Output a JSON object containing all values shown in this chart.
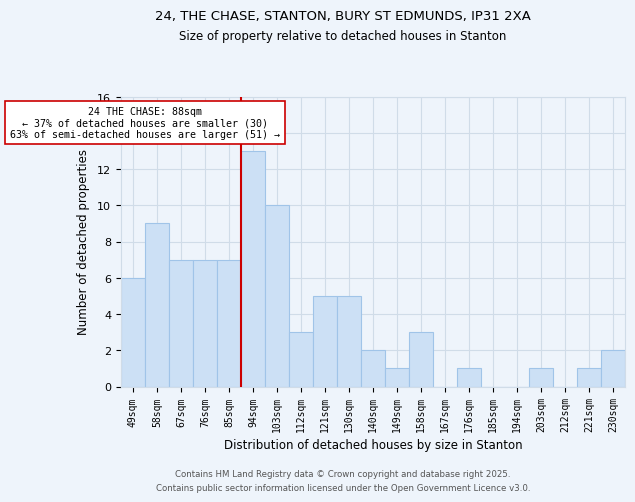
{
  "title1": "24, THE CHASE, STANTON, BURY ST EDMUNDS, IP31 2XA",
  "title2": "Size of property relative to detached houses in Stanton",
  "xlabel": "Distribution of detached houses by size in Stanton",
  "ylabel": "Number of detached properties",
  "bar_labels": [
    "49sqm",
    "58sqm",
    "67sqm",
    "76sqm",
    "85sqm",
    "94sqm",
    "103sqm",
    "112sqm",
    "121sqm",
    "130sqm",
    "140sqm",
    "149sqm",
    "158sqm",
    "167sqm",
    "176sqm",
    "185sqm",
    "194sqm",
    "203sqm",
    "212sqm",
    "221sqm",
    "230sqm"
  ],
  "bar_values": [
    6,
    9,
    7,
    7,
    7,
    13,
    10,
    3,
    5,
    5,
    2,
    1,
    3,
    0,
    1,
    0,
    0,
    1,
    0,
    1,
    2
  ],
  "bar_color": "#cce0f5",
  "bar_edgecolor": "#a0c4e8",
  "vline_x": 4.5,
  "vline_color": "#cc0000",
  "annotation_text": "24 THE CHASE: 88sqm\n← 37% of detached houses are smaller (30)\n63% of semi-detached houses are larger (51) →",
  "annotation_box_color": "white",
  "annotation_box_edgecolor": "#cc0000",
  "ylim": [
    0,
    16
  ],
  "yticks": [
    0,
    2,
    4,
    6,
    8,
    10,
    12,
    14,
    16
  ],
  "grid_color": "#d0dce8",
  "background_color": "#eef4fb",
  "footer1": "Contains HM Land Registry data © Crown copyright and database right 2025.",
  "footer2": "Contains public sector information licensed under the Open Government Licence v3.0."
}
